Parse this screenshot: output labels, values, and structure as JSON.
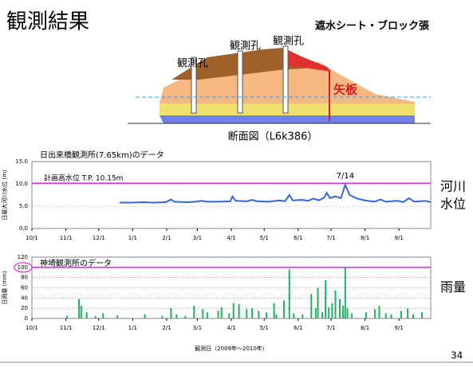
{
  "slide": {
    "title": "観測結果",
    "page": "34",
    "diagram": {
      "hole_labels": [
        "観測孔",
        "観測孔",
        "観測孔"
      ],
      "sheet_label": "遮水シート・ブロック張",
      "pile_label": "矢板",
      "caption": "断面図（L6k386）"
    }
  },
  "chart_data": [
    {
      "type": "line",
      "subtitle": "日出来橋観測所(7.65km)のデータ",
      "ylabel": "日最大河川水位 (m)",
      "side_label": [
        "河川",
        "水位"
      ],
      "reference_line": 10.15,
      "reference_label": "計画高水位  T.P.  10.15m",
      "color": "#3366dd",
      "reference_color": "#e020e0",
      "annotation": {
        "text": "7/14",
        "x": "7/14"
      },
      "x": [
        "12/20",
        "12/31",
        "1/10",
        "1/20",
        "1/31",
        "2/5",
        "2/8",
        "2/20",
        "2/27",
        "3/5",
        "3/10",
        "3/20",
        "3/31",
        "4/2",
        "4/5",
        "4/15",
        "4/20",
        "4/25",
        "5/5",
        "5/15",
        "5/20",
        "5/24",
        "5/27",
        "6/5",
        "6/10",
        "6/15",
        "6/20",
        "6/25",
        "6/27",
        "6/30",
        "7/5",
        "7/10",
        "7/14",
        "7/18",
        "7/25",
        "8/1",
        "8/10",
        "8/15",
        "8/20",
        "8/31",
        "9/5",
        "9/10",
        "9/15",
        "9/25",
        "9/30"
      ],
      "values": [
        5.8,
        5.8,
        5.9,
        5.8,
        5.9,
        6.5,
        6.0,
        5.9,
        6.0,
        6.2,
        6.0,
        6.0,
        6.1,
        7.2,
        6.2,
        6.1,
        6.4,
        6.1,
        6.0,
        6.3,
        6.1,
        7.5,
        6.3,
        6.4,
        6.2,
        6.7,
        6.3,
        7.0,
        8.0,
        6.8,
        7.2,
        6.8,
        9.8,
        7.5,
        6.7,
        6.3,
        6.0,
        6.5,
        6.0,
        6.2,
        5.9,
        6.8,
        6.0,
        6.2,
        5.9
      ],
      "xlim": [
        "10/1",
        "9/30"
      ],
      "xticks": [
        "10/1",
        "11/1",
        "12/1",
        "1/1",
        "2/1",
        "3/1",
        "4/1",
        "5/1",
        "6/1",
        "7/1",
        "8/1",
        "9/1"
      ],
      "ylim": [
        0,
        15
      ],
      "yticks": [
        {
          "value": 0,
          "label": "0.0"
        },
        {
          "value": 5,
          "label": "5.0"
        },
        {
          "value": 10,
          "label": "10.0"
        },
        {
          "value": 15,
          "label": "15.0"
        }
      ],
      "grid": true
    },
    {
      "type": "bar",
      "subtitle": "神埼観測所のデータ",
      "ylabel": "日雨量 (mm)",
      "side_label": [
        "雨量"
      ],
      "xlabel": "観測日（2009年～2010年）",
      "reference_line": 100,
      "color": "#22b060",
      "reference_color": "#e020e0",
      "x": [
        "11/2",
        "11/13",
        "11/15",
        "11/20",
        "11/28",
        "12/5",
        "12/18",
        "1/12",
        "1/28",
        "2/5",
        "2/10",
        "2/18",
        "2/26",
        "3/6",
        "3/10",
        "3/20",
        "3/23",
        "3/30",
        "4/3",
        "4/8",
        "4/15",
        "4/20",
        "4/26",
        "5/3",
        "5/10",
        "5/12",
        "5/19",
        "5/24",
        "5/28",
        "6/5",
        "6/13",
        "6/17",
        "6/19",
        "6/23",
        "6/26",
        "6/29",
        "7/2",
        "7/5",
        "7/9",
        "7/12",
        "7/14",
        "7/16",
        "7/20",
        "8/2",
        "8/10",
        "8/14",
        "8/20",
        "8/25",
        "9/3",
        "9/9",
        "9/14",
        "9/22"
      ],
      "values": [
        5,
        38,
        25,
        12,
        5,
        10,
        6,
        8,
        5,
        20,
        8,
        5,
        25,
        18,
        12,
        15,
        22,
        10,
        30,
        28,
        18,
        20,
        15,
        12,
        30,
        8,
        35,
        96,
        10,
        8,
        48,
        20,
        60,
        12,
        75,
        22,
        30,
        55,
        38,
        25,
        100,
        20,
        10,
        12,
        18,
        25,
        10,
        8,
        15,
        20,
        8,
        12
      ],
      "xlim": [
        "10/1",
        "9/30"
      ],
      "xticks": [
        "10/1",
        "11/1",
        "12/1",
        "1/1",
        "2/1",
        "3/1",
        "4/1",
        "5/1",
        "6/1",
        "7/1",
        "8/1",
        "9/1"
      ],
      "ylim": [
        0,
        120
      ],
      "yticks": [
        0,
        20,
        40,
        60,
        80,
        100,
        120
      ],
      "grid": true
    }
  ]
}
